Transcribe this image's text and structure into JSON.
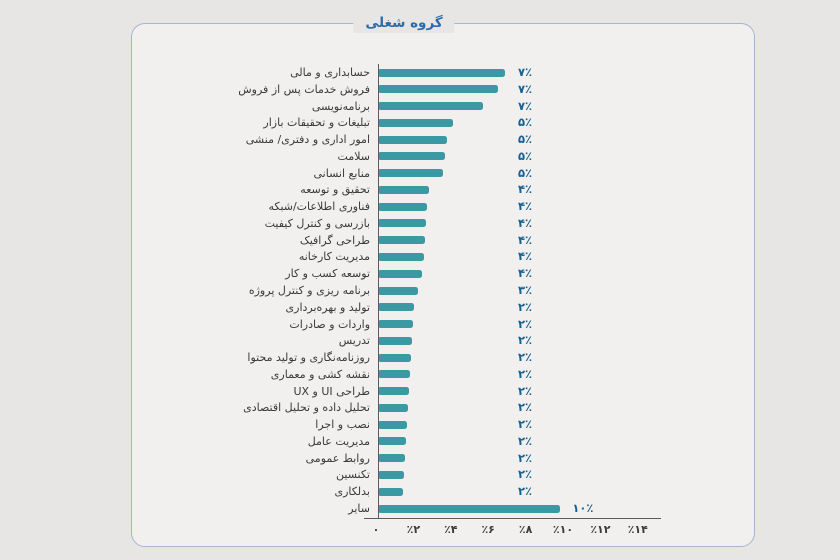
{
  "page": {
    "background": "#e8e6e4"
  },
  "card": {
    "background": "#f1f0ee",
    "border_color": "#a2b6d0"
  },
  "chart_data": {
    "type": "bar",
    "orientation": "horizontal",
    "title": "گروه شغلی",
    "categories": [
      "حسابداری و مالی",
      "فروش خدمات پس از فروش",
      "برنامه‌نویسی",
      "تبلیغات و تحقیقات بازار",
      "امور اداری و دفتری/ منشی",
      "سلامت",
      "منابع انسانی",
      "تحقیق و توسعه",
      "فناوری اطلاعات/شبکه",
      "بازرسی و کنترل کیفیت",
      "طراحی گرافیک",
      "مدیریت کارخانه",
      "توسعه کسب و کار",
      "برنامه ریزی و کنترل پروژه",
      "تولید و بهره‌برداری",
      "واردات و صادرات",
      "تدریس",
      "روزنامه‌نگاری و تولید محتوا",
      "نقشه کشی و معماری",
      "طراحی UI و UX",
      "تحلیل داده و تحلیل اقتصادی",
      "نصب و اجرا",
      "مدیریت عامل",
      "روابط عمومی",
      "تکنسین",
      "بدلکاری",
      "سایر"
    ],
    "values": [
      7,
      7,
      7,
      5,
      5,
      5,
      5,
      4,
      4,
      4,
      4,
      4,
      4,
      3,
      2,
      2,
      2,
      2,
      2,
      2,
      2,
      2,
      2,
      2,
      2,
      2,
      10
    ],
    "value_labels": [
      "۷٪",
      "۷٪",
      "۷٪",
      "۵٪",
      "۵٪",
      "۵٪",
      "۵٪",
      "۴٪",
      "۴٪",
      "۴٪",
      "۴٪",
      "۴٪",
      "۴٪",
      "۳٪",
      "۲٪",
      "۲٪",
      "۲٪",
      "۲٪",
      "۲٪",
      "۲٪",
      "۲٪",
      "۲٪",
      "۲٪",
      "۲٪",
      "۲٪",
      "۲٪",
      "۱۰٪"
    ],
    "bar_lengths_pct": [
      6.8,
      6.4,
      5.6,
      4.0,
      3.7,
      3.6,
      3.5,
      2.75,
      2.6,
      2.55,
      2.5,
      2.45,
      2.35,
      2.15,
      1.95,
      1.85,
      1.8,
      1.75,
      1.7,
      1.65,
      1.6,
      1.55,
      1.5,
      1.45,
      1.4,
      1.35,
      9.75
    ],
    "x_tick_labels": [
      "۰",
      "٪۲",
      "٪۴",
      "٪۶",
      "٪۸",
      "٪۱۰",
      "٪۱۲",
      "٪۱۴"
    ],
    "x_tick_values": [
      0,
      2,
      4,
      6,
      8,
      10,
      12,
      14
    ],
    "xlim": [
      0,
      15.2
    ],
    "grid": false,
    "legend": "none",
    "bar_color": "#3a99a3",
    "value_label_color": "#17608f",
    "title_color": "#2a6dad"
  }
}
